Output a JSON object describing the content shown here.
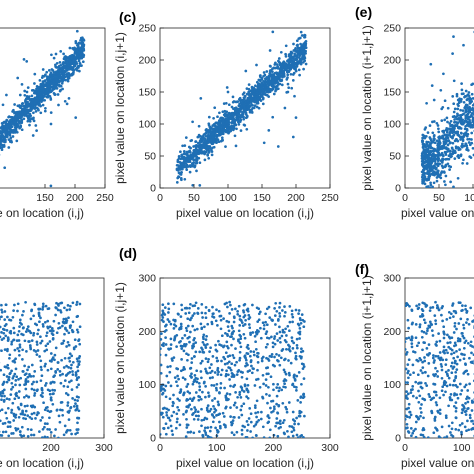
{
  "figure": {
    "point_color": "#1f6fb4",
    "axis_color": "#262626"
  },
  "chart_data": [
    {
      "type": "scatter",
      "panel_label": "",
      "xlabel": "pixel value on location (i,j)",
      "ylabel": "",
      "xlim": [
        0,
        250
      ],
      "ylim": [
        0,
        250
      ],
      "xticks": [
        "150",
        "200",
        "250"
      ],
      "yticks": [],
      "pattern": "correlated",
      "points": [
        [
          30,
          40
        ],
        [
          45,
          48
        ],
        [
          60,
          62
        ],
        [
          75,
          80
        ],
        [
          90,
          88
        ],
        [
          100,
          105
        ],
        [
          110,
          112
        ],
        [
          120,
          118
        ],
        [
          130,
          128
        ],
        [
          140,
          142
        ],
        [
          150,
          150
        ],
        [
          160,
          158
        ],
        [
          170,
          172
        ],
        [
          180,
          176
        ],
        [
          190,
          188
        ],
        [
          200,
          196
        ],
        [
          205,
          204
        ],
        [
          210,
          208
        ],
        [
          120,
          150
        ],
        [
          160,
          100
        ],
        [
          80,
          130
        ],
        [
          190,
          140
        ]
      ]
    },
    {
      "type": "scatter",
      "panel_label": "(c)",
      "xlabel": "pixel value on location (i,j)",
      "ylabel": "pixel value on location (i,j+1)",
      "xlim": [
        0,
        250
      ],
      "ylim": [
        0,
        250
      ],
      "xticks": [
        "0",
        "50",
        "100",
        "150",
        "200",
        "250"
      ],
      "yticks": [
        "0",
        "50",
        "100",
        "150",
        "200",
        "250"
      ],
      "pattern": "correlated",
      "points": [
        [
          25,
          30
        ],
        [
          35,
          38
        ],
        [
          45,
          50
        ],
        [
          55,
          58
        ],
        [
          65,
          68
        ],
        [
          75,
          78
        ],
        [
          85,
          88
        ],
        [
          95,
          98
        ],
        [
          105,
          108
        ],
        [
          115,
          118
        ],
        [
          125,
          128
        ],
        [
          135,
          138
        ],
        [
          145,
          148
        ],
        [
          155,
          158
        ],
        [
          165,
          170
        ],
        [
          175,
          178
        ],
        [
          185,
          188
        ],
        [
          195,
          198
        ],
        [
          205,
          208
        ],
        [
          210,
          212
        ],
        [
          100,
          150
        ],
        [
          160,
          90
        ],
        [
          60,
          140
        ],
        [
          200,
          110
        ]
      ]
    },
    {
      "type": "scatter",
      "panel_label": "(e)",
      "xlabel": "pixel value on location (i,j)",
      "ylabel": "pixel value on location (i+1,j+1)",
      "xlim": [
        0,
        250
      ],
      "ylim": [
        0,
        250
      ],
      "xticks": [
        "0",
        "50",
        "100"
      ],
      "yticks": [
        "0",
        "50",
        "100",
        "150",
        "200",
        "250"
      ],
      "pattern": "correlated-wide",
      "points": [
        [
          30,
          40
        ],
        [
          40,
          50
        ],
        [
          50,
          60
        ],
        [
          60,
          75
        ],
        [
          70,
          80
        ],
        [
          80,
          95
        ],
        [
          90,
          105
        ],
        [
          100,
          110
        ],
        [
          110,
          125
        ],
        [
          120,
          135
        ],
        [
          40,
          160
        ],
        [
          70,
          210
        ],
        [
          90,
          130
        ],
        [
          110,
          80
        ]
      ]
    },
    {
      "type": "scatter",
      "panel_label": "",
      "xlabel": "pixel value on location (i,j)",
      "ylabel": "",
      "xlim": [
        0,
        300
      ],
      "ylim": [
        0,
        300
      ],
      "xticks": [
        "200",
        "300"
      ],
      "yticks": [],
      "pattern": "uniform",
      "points": [
        [
          10,
          250
        ],
        [
          50,
          200
        ],
        [
          100,
          150
        ],
        [
          150,
          100
        ],
        [
          200,
          50
        ],
        [
          250,
          10
        ],
        [
          230,
          240
        ],
        [
          120,
          30
        ],
        [
          60,
          80
        ],
        [
          180,
          190
        ]
      ]
    },
    {
      "type": "scatter",
      "panel_label": "(d)",
      "xlabel": "pixel value on location (i,j)",
      "ylabel": "pixel value on location (i,j+1)",
      "xlim": [
        0,
        300
      ],
      "ylim": [
        0,
        300
      ],
      "xticks": [
        "0",
        "100",
        "200",
        "300"
      ],
      "yticks": [
        "0",
        "100",
        "200",
        "300"
      ],
      "pattern": "uniform",
      "points": [
        [
          5,
          250
        ],
        [
          50,
          210
        ],
        [
          100,
          150
        ],
        [
          150,
          100
        ],
        [
          200,
          50
        ],
        [
          250,
          5
        ],
        [
          30,
          30
        ],
        [
          240,
          240
        ],
        [
          130,
          200
        ],
        [
          70,
          90
        ]
      ]
    },
    {
      "type": "scatter",
      "panel_label": "(f)",
      "xlabel": "pixel value on location (i,j)",
      "ylabel": "pixel value on location (i+1,j+1)",
      "xlim": [
        0,
        300
      ],
      "ylim": [
        0,
        300
      ],
      "xticks": [
        "0",
        "100"
      ],
      "yticks": [
        "0",
        "100",
        "200",
        "300"
      ],
      "pattern": "uniform",
      "points": [
        [
          5,
          250
        ],
        [
          30,
          200
        ],
        [
          50,
          150
        ],
        [
          70,
          100
        ],
        [
          90,
          50
        ],
        [
          60,
          240
        ],
        [
          20,
          30
        ]
      ]
    }
  ]
}
